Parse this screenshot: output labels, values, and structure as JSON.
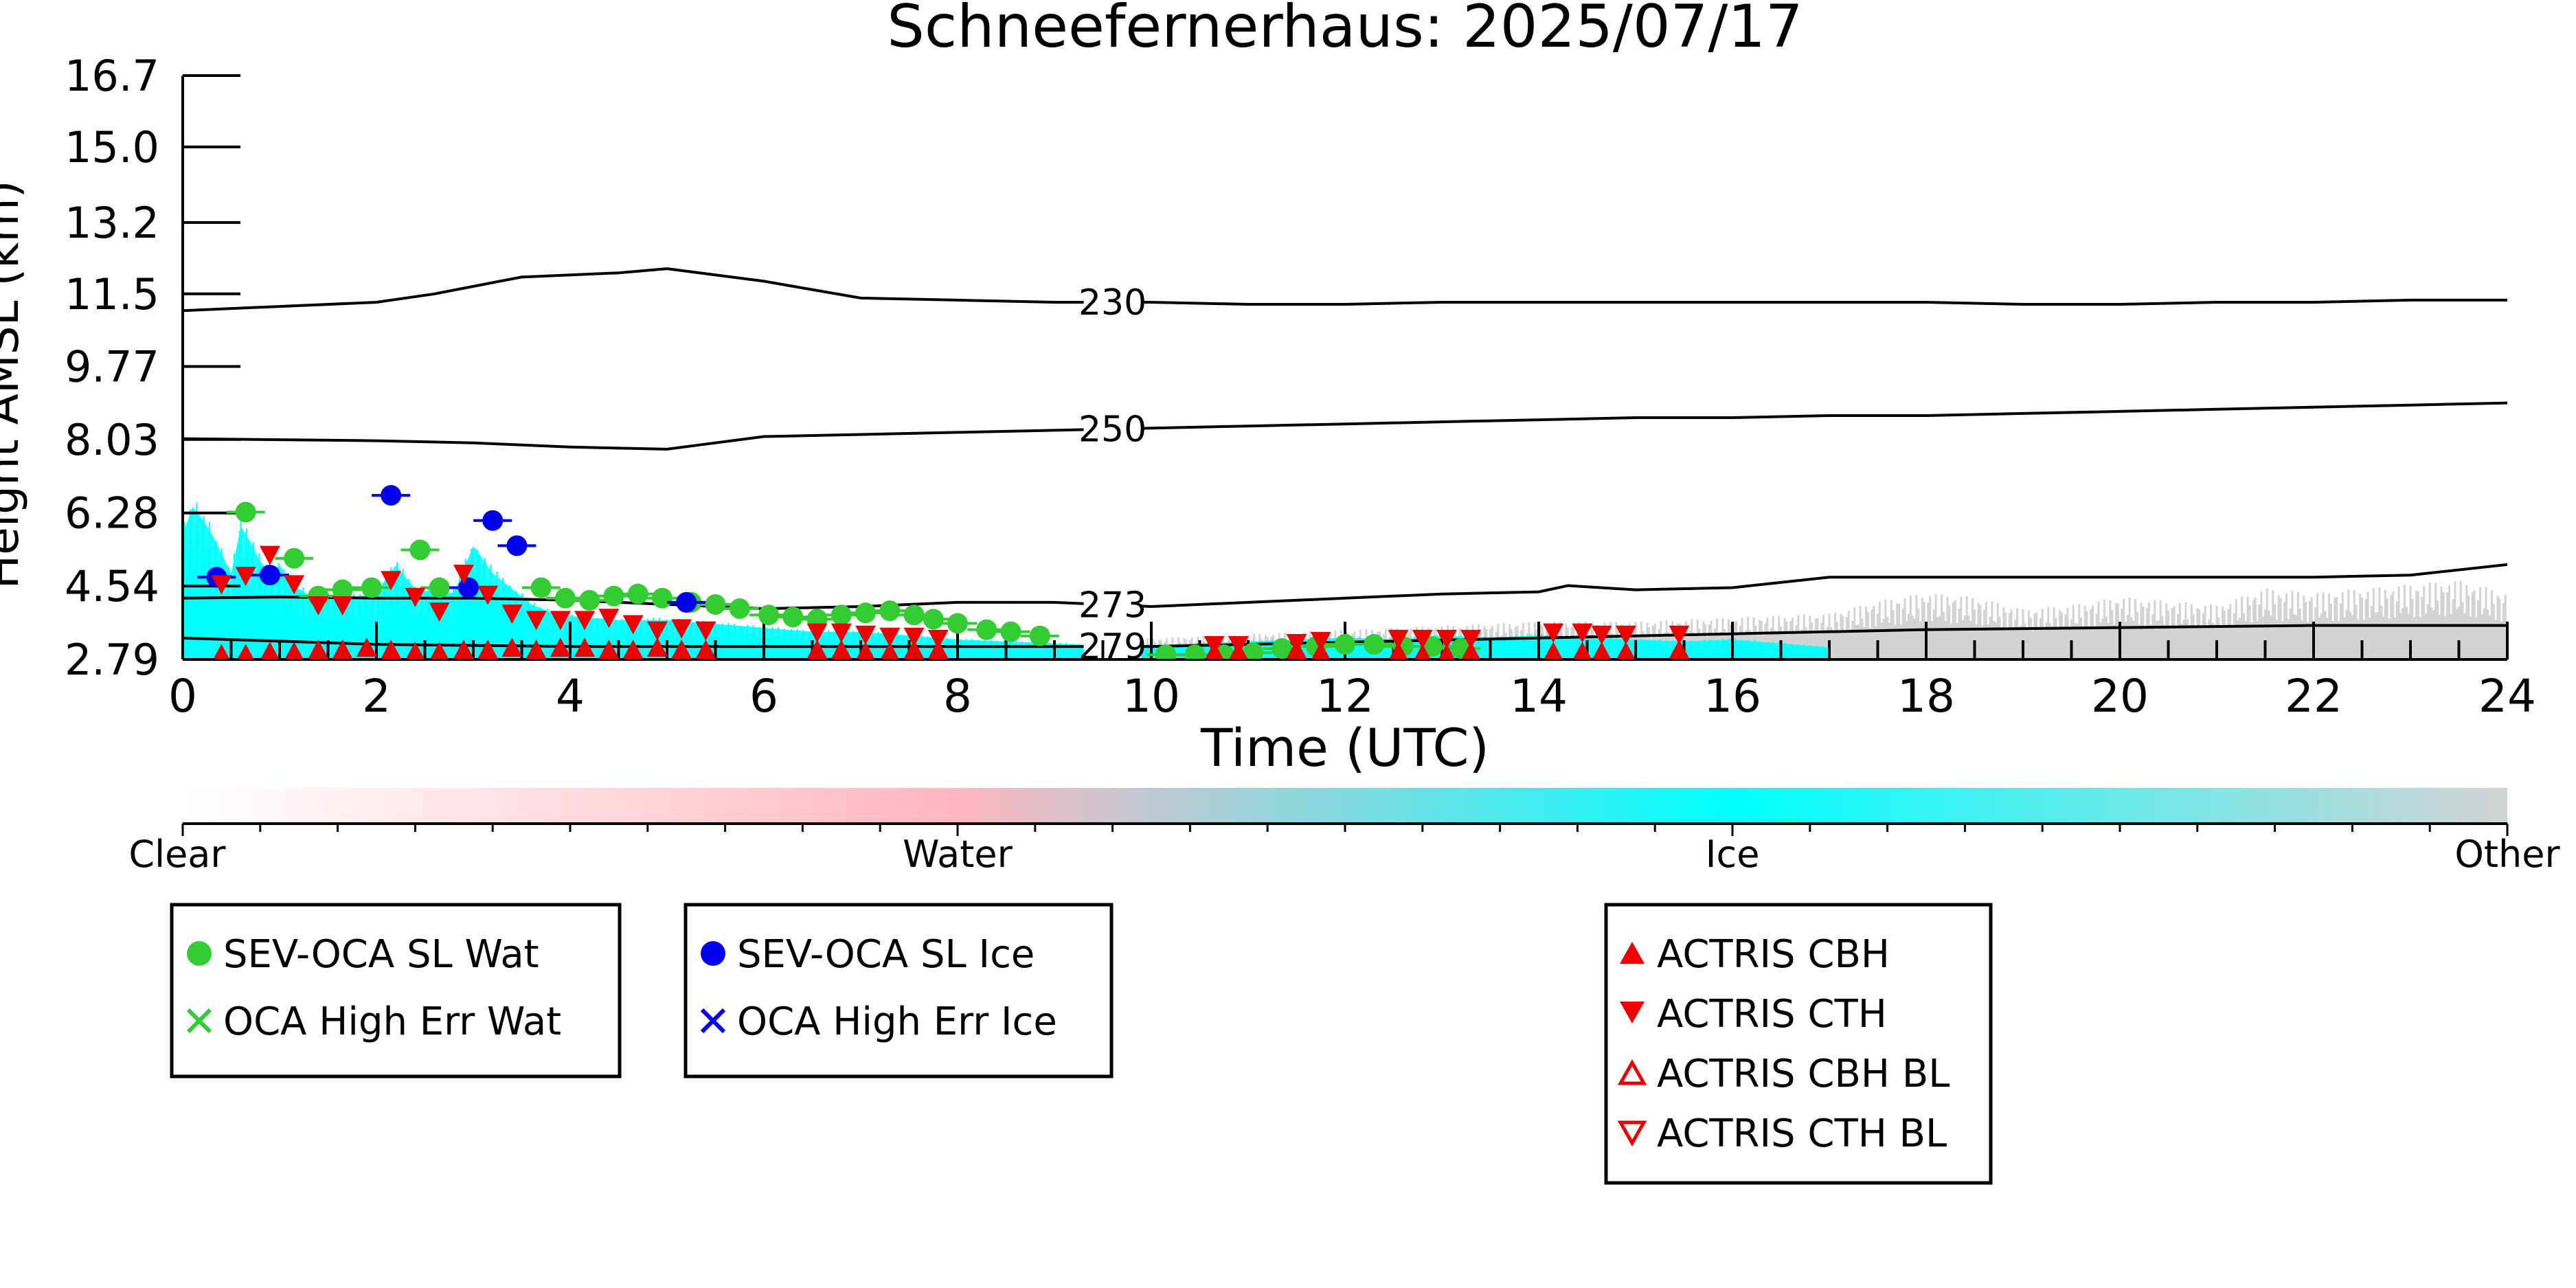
{
  "chart_data": {
    "type": "scatter",
    "title": "Schneefernerhaus: 2025/07/17",
    "xlabel": "Time (UTC)",
    "ylabel": "Height AMSL (km)",
    "xlim": [
      0,
      24
    ],
    "ylim": [
      2.79,
      16.7
    ],
    "x_ticks": [
      "0",
      "2",
      "4",
      "6",
      "8",
      "10",
      "12",
      "14",
      "16",
      "18",
      "20",
      "22",
      "24"
    ],
    "y_ticks": [
      "2.79",
      "4.54",
      "6.28",
      "8.03",
      "9.77",
      "11.5",
      "13.2",
      "15.0",
      "16.7"
    ],
    "y_tick_values": [
      2.79,
      4.54,
      6.28,
      8.03,
      9.77,
      11.5,
      13.2,
      15.0,
      16.7
    ],
    "colorbar": {
      "labels": [
        "Clear",
        "Water",
        "Ice",
        "Other"
      ],
      "colors": [
        "#ffffff",
        "#ffb6c1",
        "#00ffff",
        "#d3d3d3"
      ]
    },
    "legends": [
      {
        "entries": [
          {
            "label": "SEV-OCA SL Wat",
            "marker": "circle",
            "color": "#33cc33"
          },
          {
            "label": "OCA High Err Wat",
            "marker": "x",
            "color": "#33cc33"
          }
        ]
      },
      {
        "entries": [
          {
            "label": "SEV-OCA SL Ice",
            "marker": "circle",
            "color": "#0000ee"
          },
          {
            "label": "OCA High Err Ice",
            "marker": "x",
            "color": "#0000ee"
          }
        ]
      },
      {
        "entries": [
          {
            "label": "ACTRIS CBH",
            "marker": "triangle-up",
            "color": "#ee0000"
          },
          {
            "label": "ACTRIS CTH",
            "marker": "triangle-down",
            "color": "#ee0000"
          },
          {
            "label": "ACTRIS CBH BL",
            "marker": "triangle-up-open",
            "color": "#ee0000"
          },
          {
            "label": "ACTRIS CTH BL",
            "marker": "triangle-down-open",
            "color": "#ee0000"
          }
        ]
      }
    ],
    "contours": [
      {
        "label": "230",
        "label_x": 9.6,
        "x": [
          0,
          2,
          2.6,
          3.5,
          4.5,
          5,
          6,
          7,
          8,
          9,
          10,
          11,
          12,
          13,
          14,
          15,
          16,
          17,
          18,
          19,
          20,
          21,
          22,
          23,
          24
        ],
        "y": [
          11.1,
          11.3,
          11.5,
          11.9,
          12.0,
          12.1,
          11.8,
          11.4,
          11.35,
          11.3,
          11.3,
          11.25,
          11.25,
          11.3,
          11.3,
          11.3,
          11.3,
          11.3,
          11.3,
          11.25,
          11.25,
          11.3,
          11.3,
          11.35,
          11.35
        ]
      },
      {
        "label": "250",
        "label_x": 9.6,
        "x": [
          0,
          2,
          3,
          4,
          5,
          6,
          7,
          8,
          9,
          10,
          11,
          12,
          13,
          14,
          15,
          16,
          17,
          18,
          19,
          20,
          21,
          22,
          23,
          24
        ],
        "y": [
          8.05,
          8.0,
          7.95,
          7.85,
          7.8,
          8.1,
          8.15,
          8.2,
          8.25,
          8.3,
          8.35,
          8.4,
          8.45,
          8.5,
          8.55,
          8.55,
          8.6,
          8.6,
          8.65,
          8.7,
          8.75,
          8.8,
          8.85,
          8.9
        ]
      },
      {
        "label": "273",
        "label_x": 9.6,
        "x": [
          0,
          1,
          2,
          3,
          4,
          5,
          6,
          7,
          8,
          9,
          10,
          11,
          12,
          13,
          14,
          14.3,
          15,
          16,
          17,
          18,
          19,
          20,
          21,
          22,
          23,
          24
        ],
        "y": [
          4.25,
          4.28,
          4.25,
          4.25,
          4.2,
          4.1,
          4.0,
          4.05,
          4.15,
          4.15,
          4.05,
          4.15,
          4.25,
          4.35,
          4.4,
          4.55,
          4.45,
          4.5,
          4.75,
          4.75,
          4.75,
          4.75,
          4.75,
          4.75,
          4.8,
          5.05
        ]
      },
      {
        "label": "279",
        "label_x": 9.6,
        "x": [
          0,
          2,
          4,
          6,
          8,
          10,
          12,
          14,
          16,
          18,
          20,
          22,
          24
        ],
        "y": [
          3.3,
          3.15,
          3.1,
          3.1,
          3.1,
          3.1,
          3.2,
          3.3,
          3.4,
          3.5,
          3.55,
          3.6,
          3.6
        ]
      }
    ],
    "series": [
      {
        "name": "SEV-OCA SL Wat",
        "marker": "circle",
        "color": "#33cc33",
        "x": [
          0.65,
          1.15,
          1.4,
          1.65,
          1.95,
          2.45,
          2.65,
          3.7,
          3.95,
          4.2,
          4.45,
          4.7,
          4.95,
          5.25,
          5.5,
          5.75,
          6.05,
          6.3,
          6.55,
          6.8,
          7.05,
          7.3,
          7.55,
          7.75,
          8.0,
          8.3,
          8.55,
          8.85,
          10.15,
          10.45,
          10.75,
          11.05,
          11.35,
          11.7,
          12.0,
          12.3,
          12.6,
          12.9,
          13.2
        ],
        "y": [
          6.3,
          5.2,
          4.3,
          4.45,
          4.5,
          5.4,
          4.5,
          4.5,
          4.25,
          4.2,
          4.3,
          4.35,
          4.25,
          4.15,
          4.1,
          4.0,
          3.85,
          3.8,
          3.75,
          3.85,
          3.9,
          3.95,
          3.85,
          3.75,
          3.65,
          3.5,
          3.45,
          3.35,
          2.9,
          2.9,
          2.9,
          2.95,
          3.05,
          3.1,
          3.15,
          3.15,
          3.1,
          3.1,
          3.05
        ]
      },
      {
        "name": "SEV-OCA SL Ice",
        "marker": "circle",
        "color": "#0000ee",
        "x": [
          0.35,
          0.9,
          2.15,
          2.95,
          3.2,
          3.45,
          5.2
        ],
        "y": [
          4.75,
          4.8,
          6.7,
          4.5,
          6.1,
          5.5,
          4.15
        ]
      },
      {
        "name": "ACTRIS CBH",
        "marker": "triangle-up",
        "color": "#ee0000",
        "x": [
          0.4,
          0.65,
          0.9,
          1.15,
          1.4,
          1.65,
          1.9,
          2.15,
          2.4,
          2.65,
          2.9,
          3.15,
          3.4,
          3.65,
          3.9,
          4.15,
          4.4,
          4.65,
          4.9,
          5.15,
          5.4,
          6.55,
          6.8,
          7.05,
          7.3,
          7.55,
          7.8,
          10.65,
          10.9,
          11.5,
          11.75,
          12.55,
          12.8,
          13.05,
          13.3,
          14.15,
          14.45,
          14.65,
          14.9,
          15.45
        ],
        "y": [
          2.9,
          2.9,
          2.95,
          2.95,
          3.0,
          3.0,
          3.05,
          3.0,
          2.95,
          2.95,
          3.0,
          3.0,
          3.05,
          3.0,
          3.05,
          3.05,
          3.0,
          3.0,
          3.05,
          3.0,
          3.0,
          3.0,
          3.0,
          2.95,
          2.95,
          3.0,
          3.0,
          2.95,
          2.95,
          3.0,
          2.95,
          2.95,
          2.9,
          2.9,
          2.95,
          2.95,
          2.95,
          2.95,
          2.95,
          3.0
        ]
      },
      {
        "name": "ACTRIS CTH",
        "marker": "triangle-down",
        "color": "#ee0000",
        "x": [
          0.4,
          0.65,
          0.9,
          1.15,
          1.4,
          1.65,
          2.15,
          2.4,
          2.65,
          2.9,
          3.15,
          3.4,
          3.65,
          3.9,
          4.15,
          4.4,
          4.65,
          4.9,
          5.15,
          5.4,
          6.55,
          6.8,
          7.05,
          7.3,
          7.55,
          7.8,
          10.65,
          10.9,
          11.5,
          11.75,
          12.55,
          12.8,
          13.05,
          13.3,
          14.15,
          14.45,
          14.65,
          14.9,
          15.45
        ],
        "y": [
          4.6,
          4.8,
          5.3,
          4.6,
          4.1,
          4.1,
          4.7,
          4.3,
          3.95,
          4.85,
          4.35,
          3.9,
          3.75,
          3.75,
          3.75,
          3.8,
          3.65,
          3.5,
          3.55,
          3.5,
          3.45,
          3.45,
          3.4,
          3.35,
          3.35,
          3.3,
          3.15,
          3.15,
          3.2,
          3.25,
          3.3,
          3.3,
          3.3,
          3.3,
          3.45,
          3.45,
          3.4,
          3.4,
          3.4
        ]
      }
    ],
    "cloud_mask": {
      "ice_x": [
        0.0,
        0.1,
        0.2,
        0.3,
        0.4,
        0.5,
        0.6,
        0.7,
        0.8,
        0.9,
        1.0,
        1.1,
        1.2,
        1.4,
        1.6,
        1.8,
        2.0,
        2.2,
        2.4,
        2.6,
        2.8,
        3.0,
        3.2,
        3.4,
        3.6,
        3.8,
        4.0,
        4.5,
        5.0,
        5.5,
        6.0,
        6.5,
        7.0,
        7.5,
        8.0,
        8.5,
        9.0,
        9.5,
        10.0,
        10.5,
        11.0,
        11.5,
        12.0,
        12.5,
        13.0,
        13.5,
        14.0,
        14.5,
        15.0,
        15.5,
        16.0,
        16.5,
        17.0
      ],
      "ice_top": [
        6.0,
        6.7,
        6.4,
        6.0,
        5.5,
        5.0,
        6.2,
        5.8,
        5.3,
        5.0,
        5.2,
        4.8,
        4.6,
        4.3,
        4.5,
        4.4,
        4.5,
        5.2,
        4.6,
        4.5,
        4.5,
        5.7,
        5.0,
        4.6,
        4.2,
        4.0,
        3.9,
        3.8,
        3.8,
        3.7,
        3.6,
        3.5,
        3.5,
        3.4,
        3.3,
        3.25,
        3.2,
        3.15,
        3.15,
        3.2,
        3.25,
        3.3,
        3.35,
        3.3,
        3.4,
        3.35,
        3.4,
        3.35,
        3.3,
        3.25,
        3.3,
        3.2,
        3.1
      ],
      "other_x": [
        9.0,
        10,
        11,
        12,
        13,
        14,
        15,
        16,
        17,
        17.5,
        18,
        18.5,
        19,
        19.5,
        20,
        20.5,
        21,
        21.5,
        22,
        22.5,
        23,
        23.5,
        24
      ],
      "other_top": [
        3.1,
        3.3,
        3.4,
        3.5,
        3.6,
        3.7,
        3.7,
        3.8,
        3.9,
        4.2,
        4.4,
        4.3,
        4.0,
        4.1,
        4.3,
        4.2,
        4.1,
        4.5,
        4.4,
        4.5,
        4.6,
        4.7,
        4.4
      ]
    }
  }
}
